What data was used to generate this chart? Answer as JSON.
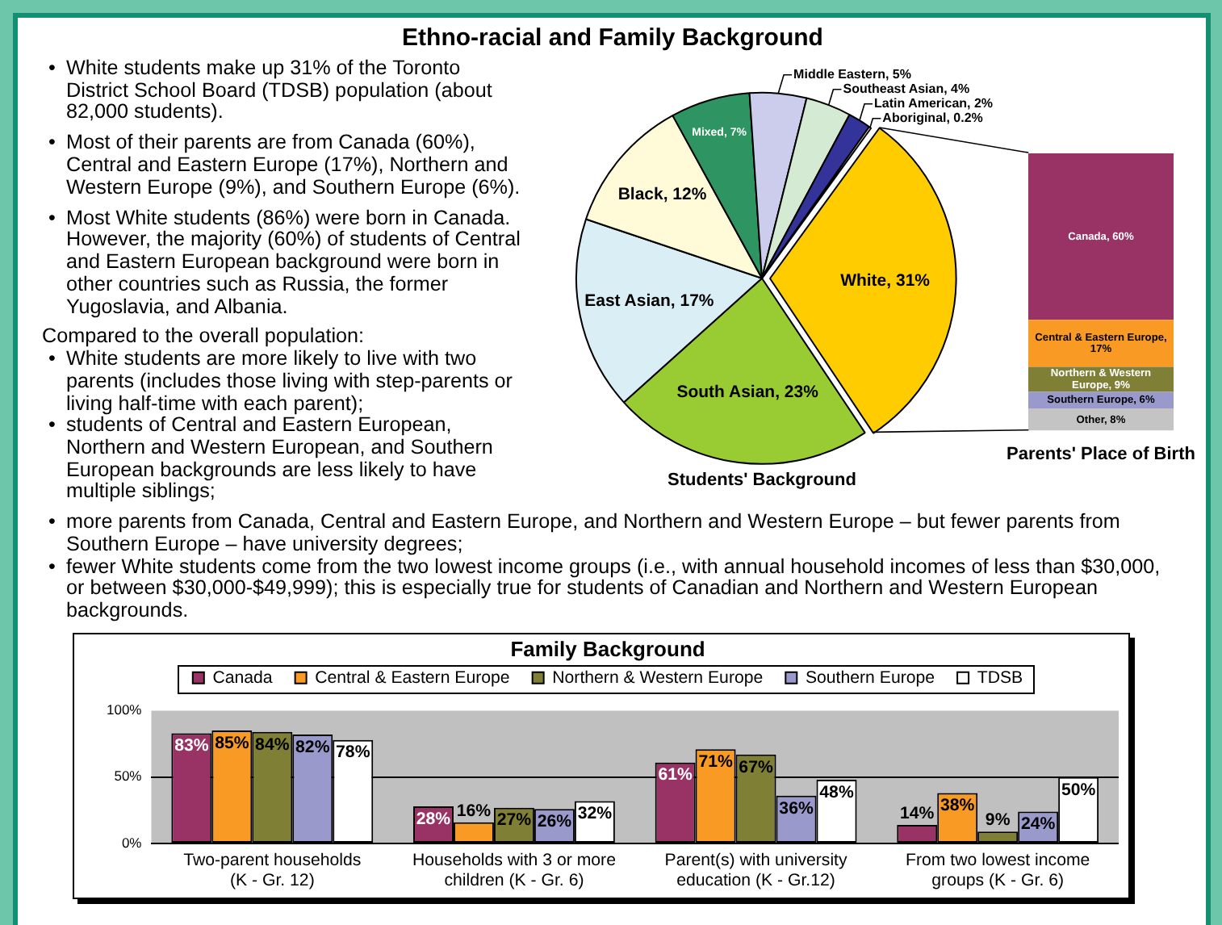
{
  "chart_data": [
    {
      "type": "other",
      "title": "Ethno-racial and Family Background",
      "annotations": [
        "• White students make up 31% of the Toronto District School Board (TDSB) population (about 82,000 students).",
        "• Most of their parents are from Canada (60%), Central and Eastern Europe (17%), Northern and Western Europe (9%), and Southern Europe (6%).",
        "• Most White students (86%) were born in Canada. However, the majority (60%) of students of Central and Eastern European background were born in other countries such as Russia, the former Yugoslavia, and Albania.",
        "Compared to the overall population:\n• White students are more likely to live with two parents (includes those living with step-parents or living half-time with each parent);\n• students of Central and Eastern European, Northern and Western European, and Southern European backgrounds are less likely to have multiple siblings;",
        "• more parents from Canada, Central and Eastern Europe, and Northern and Western Europe – but fewer parents from Southern Europe – have university degrees;\n• fewer White students come from the two lowest income groups (i.e., with annual household incomes of less than $30,000, or between $30,000-$49,999); this is especially true for students of Canadian and Northern and Western European backgrounds."
      ]
    },
    {
      "type": "pie",
      "title": "Students' Background",
      "categories": [
        "White",
        "South Asian",
        "East Asian",
        "Black",
        "Mixed",
        "Middle Eastern",
        "Southeast Asian",
        "Latin American",
        "Aboriginal"
      ],
      "values": [
        31,
        23,
        17,
        12,
        7,
        5,
        4,
        2,
        0.2
      ],
      "value_labels": [
        "31%",
        "23%",
        "17%",
        "12%",
        "7%",
        "5%",
        "4%",
        "2%",
        "0.2%"
      ],
      "colors": [
        "#ffcc00",
        "#99cc33",
        "#d9eef5",
        "#fffbd9",
        "#2e9462",
        "#ccccec",
        "#d4ead2",
        "#333399",
        "#ffffff"
      ]
    },
    {
      "type": "bar",
      "stacked": true,
      "title": "Parents' Place of Birth",
      "categories": [
        null
      ],
      "series": [
        {
          "color": "#c4c4c4",
          "values": [
            8
          ],
          "value_labels": [
            "Other, 8%"
          ]
        },
        {
          "color": "#9999cc",
          "values": [
            6
          ],
          "value_labels": [
            "Southern Europe, 6%"
          ]
        },
        {
          "color": "#7f7f35",
          "values": [
            9
          ],
          "value_labels": [
            "Northern & Western Europe, 9%"
          ]
        },
        {
          "color": "#f89a24",
          "values": [
            17
          ],
          "value_labels": [
            "Central & Eastern Europe, 17%"
          ]
        },
        {
          "color": "#993366",
          "values": [
            60
          ],
          "value_labels": [
            "Canada, 60%"
          ]
        }
      ],
      "data_labels": true
    },
    {
      "type": "bar",
      "title": "Family Background",
      "categories": [
        "Two-parent households\n(K - Gr. 12)",
        "Households with 3 or more\nchildren (K - Gr. 6)",
        "Parent(s) with university\neducation (K - Gr.12)",
        "From two lowest income\ngroups (K - Gr. 6)"
      ],
      "series": [
        {
          "name": "Canada",
          "color": "#993366",
          "values": [
            83,
            28,
            61,
            14
          ],
          "value_labels": [
            "83%",
            "28%",
            "61%",
            "14%"
          ]
        },
        {
          "name": "Central & Eastern Europe",
          "color": "#f89a24",
          "values": [
            85,
            16,
            71,
            38
          ],
          "value_labels": [
            "85%",
            "16%",
            "71%",
            "38%"
          ]
        },
        {
          "name": "Northern & Western Europe",
          "color": "#7f7f35",
          "values": [
            84,
            27,
            67,
            9
          ],
          "value_labels": [
            "84%",
            "27%",
            "67%",
            "9%"
          ]
        },
        {
          "name": "Southern Europe",
          "color": "#9999cc",
          "values": [
            82,
            26,
            36,
            24
          ],
          "value_labels": [
            "82%",
            "26%",
            "36%",
            "24%"
          ]
        },
        {
          "name": "TDSB",
          "color": "#ffffff",
          "values": [
            78,
            32,
            48,
            50
          ],
          "value_labels": [
            "78%",
            "32%",
            "48%",
            "50%"
          ]
        }
      ],
      "ylim": [
        0,
        100
      ],
      "yticks": [
        {
          "value": 0,
          "label": "0%"
        },
        {
          "value": 50,
          "label": "50%"
        },
        {
          "value": 100,
          "label": "100%"
        }
      ],
      "grid": "y",
      "legend": "top"
    }
  ]
}
